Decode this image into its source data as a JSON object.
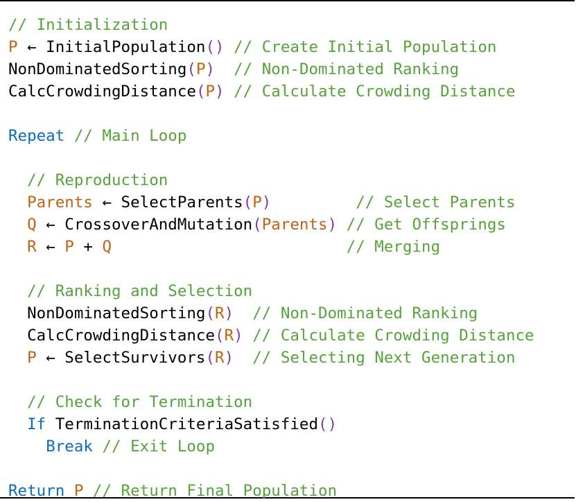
{
  "colors": {
    "comment": "#55a33a",
    "keyword": "#0a6cc1",
    "variable": "#c4610f",
    "paren": "#7d3fa5",
    "plain": "#000000",
    "border": "#000000"
  },
  "lines": [
    {
      "tokens": [
        {
          "t": "comment",
          "v": "// Initialization"
        }
      ]
    },
    {
      "tokens": [
        {
          "t": "var",
          "v": "P"
        },
        {
          "t": "plain",
          "v": " ← InitialPopulation"
        },
        {
          "t": "paren",
          "v": "()"
        },
        {
          "t": "plain",
          "v": " "
        },
        {
          "t": "comment",
          "v": "// Create Initial Population"
        }
      ]
    },
    {
      "tokens": [
        {
          "t": "plain",
          "v": "NonDominatedSorting"
        },
        {
          "t": "paren",
          "v": "("
        },
        {
          "t": "var",
          "v": "P"
        },
        {
          "t": "paren",
          "v": ")"
        },
        {
          "t": "plain",
          "v": "  "
        },
        {
          "t": "comment",
          "v": "// Non-Dominated Ranking"
        }
      ]
    },
    {
      "tokens": [
        {
          "t": "plain",
          "v": "CalcCrowdingDistance"
        },
        {
          "t": "paren",
          "v": "("
        },
        {
          "t": "var",
          "v": "P"
        },
        {
          "t": "paren",
          "v": ")"
        },
        {
          "t": "plain",
          "v": " "
        },
        {
          "t": "comment",
          "v": "// Calculate Crowding Distance"
        }
      ]
    },
    {
      "tokens": []
    },
    {
      "tokens": [
        {
          "t": "keyword",
          "v": "Repeat"
        },
        {
          "t": "plain",
          "v": " "
        },
        {
          "t": "comment",
          "v": "// Main Loop"
        }
      ]
    },
    {
      "tokens": []
    },
    {
      "tokens": [
        {
          "t": "plain",
          "v": "  "
        },
        {
          "t": "comment",
          "v": "// Reproduction"
        }
      ]
    },
    {
      "tokens": [
        {
          "t": "plain",
          "v": "  "
        },
        {
          "t": "var",
          "v": "Parents"
        },
        {
          "t": "plain",
          "v": " ← SelectParents"
        },
        {
          "t": "paren",
          "v": "("
        },
        {
          "t": "var",
          "v": "P"
        },
        {
          "t": "paren",
          "v": ")"
        },
        {
          "t": "plain",
          "v": "         "
        },
        {
          "t": "comment",
          "v": "// Select Parents"
        }
      ]
    },
    {
      "tokens": [
        {
          "t": "plain",
          "v": "  "
        },
        {
          "t": "var",
          "v": "Q"
        },
        {
          "t": "plain",
          "v": " ← CrossoverAndMutation"
        },
        {
          "t": "paren",
          "v": "("
        },
        {
          "t": "var",
          "v": "Parents"
        },
        {
          "t": "paren",
          "v": ")"
        },
        {
          "t": "plain",
          "v": " "
        },
        {
          "t": "comment",
          "v": "// Get Offsprings"
        }
      ]
    },
    {
      "tokens": [
        {
          "t": "plain",
          "v": "  "
        },
        {
          "t": "var",
          "v": "R"
        },
        {
          "t": "plain",
          "v": " ← "
        },
        {
          "t": "var",
          "v": "P"
        },
        {
          "t": "plain",
          "v": " + "
        },
        {
          "t": "var",
          "v": "Q"
        },
        {
          "t": "plain",
          "v": "                         "
        },
        {
          "t": "comment",
          "v": "// Merging"
        }
      ]
    },
    {
      "tokens": []
    },
    {
      "tokens": [
        {
          "t": "plain",
          "v": "  "
        },
        {
          "t": "comment",
          "v": "// Ranking and Selection"
        }
      ]
    },
    {
      "tokens": [
        {
          "t": "plain",
          "v": "  NonDominatedSorting"
        },
        {
          "t": "paren",
          "v": "("
        },
        {
          "t": "var",
          "v": "R"
        },
        {
          "t": "paren",
          "v": ")"
        },
        {
          "t": "plain",
          "v": "  "
        },
        {
          "t": "comment",
          "v": "// Non-Dominated Ranking"
        }
      ]
    },
    {
      "tokens": [
        {
          "t": "plain",
          "v": "  CalcCrowdingDistance"
        },
        {
          "t": "paren",
          "v": "("
        },
        {
          "t": "var",
          "v": "R"
        },
        {
          "t": "paren",
          "v": ")"
        },
        {
          "t": "plain",
          "v": " "
        },
        {
          "t": "comment",
          "v": "// Calculate Crowding Distance"
        }
      ]
    },
    {
      "tokens": [
        {
          "t": "plain",
          "v": "  "
        },
        {
          "t": "var",
          "v": "P"
        },
        {
          "t": "plain",
          "v": " ← SelectSurvivors"
        },
        {
          "t": "paren",
          "v": "("
        },
        {
          "t": "var",
          "v": "R"
        },
        {
          "t": "paren",
          "v": ")"
        },
        {
          "t": "plain",
          "v": "  "
        },
        {
          "t": "comment",
          "v": "// Selecting Next Generation"
        }
      ]
    },
    {
      "tokens": []
    },
    {
      "tokens": [
        {
          "t": "plain",
          "v": "  "
        },
        {
          "t": "comment",
          "v": "// Check for Termination"
        }
      ]
    },
    {
      "tokens": [
        {
          "t": "plain",
          "v": "  "
        },
        {
          "t": "keyword",
          "v": "If"
        },
        {
          "t": "plain",
          "v": " TerminationCriteriaSatisfied"
        },
        {
          "t": "paren",
          "v": "()"
        }
      ]
    },
    {
      "tokens": [
        {
          "t": "plain",
          "v": "    "
        },
        {
          "t": "keyword",
          "v": "Break"
        },
        {
          "t": "plain",
          "v": " "
        },
        {
          "t": "comment",
          "v": "// Exit Loop"
        }
      ]
    },
    {
      "tokens": []
    },
    {
      "tokens": [
        {
          "t": "keyword",
          "v": "Return"
        },
        {
          "t": "plain",
          "v": " "
        },
        {
          "t": "var",
          "v": "P"
        },
        {
          "t": "plain",
          "v": " "
        },
        {
          "t": "comment",
          "v": "// Return Final Population"
        }
      ]
    }
  ]
}
